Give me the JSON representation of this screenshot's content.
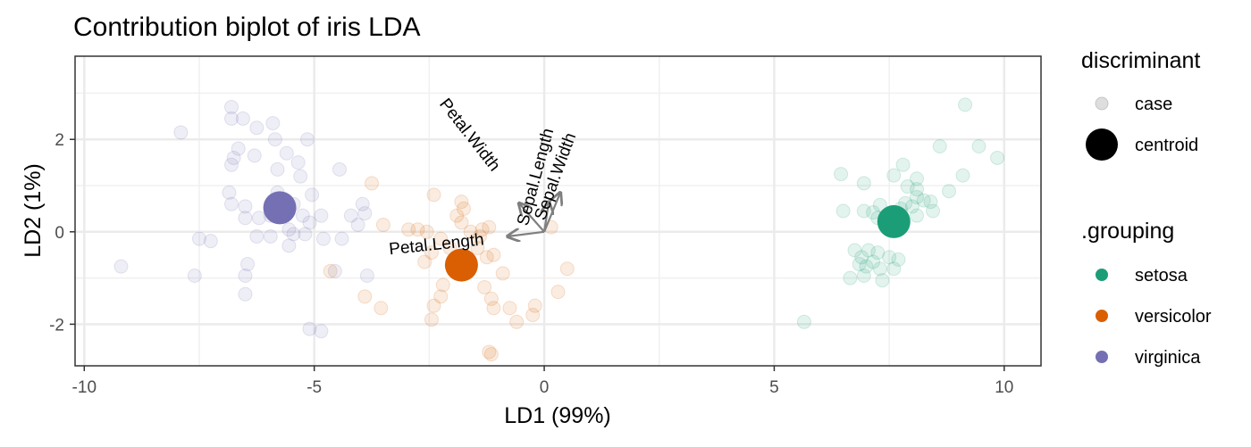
{
  "chart_data": {
    "type": "scatter",
    "title": "Contribution biplot of iris LDA",
    "xlabel": "LD1 (99%)",
    "ylabel": "LD2 (1%)",
    "xlim": [
      -10.2,
      10.8
    ],
    "ylim": [
      -2.9,
      3.8
    ],
    "x_ticks": [
      -10,
      -5,
      0,
      5,
      10
    ],
    "y_ticks": [
      -2,
      0,
      2
    ],
    "x_tick_labels": [
      "-10",
      "-5",
      "0",
      "5",
      "10"
    ],
    "y_tick_labels": [
      "-2",
      "0",
      "2"
    ],
    "grid": true,
    "legend": {
      "position": "right",
      "discriminant_title": "discriminant",
      "discriminant_items": [
        {
          "label": "case",
          "color": "#bbbbbb"
        },
        {
          "label": "centroid",
          "color": "#000000"
        }
      ],
      "grouping_title": ".grouping",
      "grouping_items": [
        {
          "label": "setosa",
          "color": "#1b9e77"
        },
        {
          "label": "versicolor",
          "color": "#d95f02"
        },
        {
          "label": "virginica",
          "color": "#7570b3"
        }
      ]
    },
    "groups": [
      {
        "name": "setosa",
        "color": "#1b9e77",
        "centroid": [
          7.6,
          0.22
        ],
        "cases": [
          [
            9.15,
            2.75
          ],
          [
            8.6,
            1.85
          ],
          [
            9.45,
            1.85
          ],
          [
            9.85,
            1.6
          ],
          [
            9.1,
            1.22
          ],
          [
            7.8,
            1.45
          ],
          [
            7.6,
            1.22
          ],
          [
            8.1,
            1.15
          ],
          [
            7.9,
            0.98
          ],
          [
            8.1,
            0.92
          ],
          [
            8.8,
            0.88
          ],
          [
            6.45,
            1.25
          ],
          [
            6.95,
            1.05
          ],
          [
            8.25,
            0.68
          ],
          [
            8.4,
            0.65
          ],
          [
            8.1,
            0.75
          ],
          [
            7.85,
            0.62
          ],
          [
            7.75,
            0.5
          ],
          [
            8.0,
            0.55
          ],
          [
            8.45,
            0.45
          ],
          [
            7.3,
            0.58
          ],
          [
            7.15,
            0.42
          ],
          [
            6.95,
            0.45
          ],
          [
            6.5,
            0.45
          ],
          [
            7.25,
            0.3
          ],
          [
            7.5,
            0.3
          ],
          [
            8.1,
            0.35
          ],
          [
            6.75,
            -0.4
          ],
          [
            7.05,
            -0.4
          ],
          [
            6.9,
            -0.55
          ],
          [
            7.25,
            -0.45
          ],
          [
            7.5,
            -0.55
          ],
          [
            6.85,
            -0.7
          ],
          [
            7.0,
            -0.75
          ],
          [
            7.15,
            -0.65
          ],
          [
            7.3,
            -0.8
          ],
          [
            7.6,
            -0.8
          ],
          [
            6.95,
            -0.95
          ],
          [
            6.65,
            -1.0
          ],
          [
            7.35,
            -1.05
          ],
          [
            5.65,
            -1.95
          ],
          [
            7.7,
            -0.6
          ]
        ]
      },
      {
        "name": "versicolor",
        "color": "#d95f02",
        "centroid": [
          -1.8,
          -0.72
        ],
        "cases": [
          [
            -3.75,
            1.05
          ],
          [
            -2.4,
            0.8
          ],
          [
            -1.8,
            0.65
          ],
          [
            -1.8,
            0.2
          ],
          [
            -1.9,
            0.35
          ],
          [
            -1.75,
            0.5
          ],
          [
            -1.6,
            0.0
          ],
          [
            -1.35,
            0.05
          ],
          [
            -1.2,
            0.1
          ],
          [
            -2.95,
            0.05
          ],
          [
            -2.75,
            0.05
          ],
          [
            -2.55,
            0.0
          ],
          [
            -3.5,
            0.15
          ],
          [
            -2.25,
            -0.15
          ],
          [
            -2.45,
            -0.45
          ],
          [
            -2.6,
            -0.65
          ],
          [
            -2.05,
            -0.35
          ],
          [
            -1.45,
            -0.35
          ],
          [
            -1.25,
            -0.55
          ],
          [
            -1.1,
            -0.5
          ],
          [
            -0.9,
            -0.9
          ],
          [
            -1.3,
            -1.2
          ],
          [
            -2.2,
            -1.15
          ],
          [
            -2.25,
            -1.4
          ],
          [
            -2.4,
            -1.6
          ],
          [
            -2.45,
            -1.9
          ],
          [
            -1.15,
            -1.45
          ],
          [
            -1.1,
            -1.65
          ],
          [
            -0.75,
            -1.65
          ],
          [
            -0.6,
            -1.95
          ],
          [
            -0.25,
            -1.8
          ],
          [
            -0.2,
            -1.6
          ],
          [
            -4.65,
            -0.85
          ],
          [
            -3.9,
            -1.4
          ],
          [
            -3.55,
            -1.65
          ],
          [
            -1.2,
            -2.6
          ],
          [
            -1.15,
            -2.65
          ],
          [
            0.3,
            -1.3
          ],
          [
            0.5,
            -0.8
          ],
          [
            0.15,
            0.1
          ],
          [
            -1.4,
            -0.1
          ]
        ]
      },
      {
        "name": "virginica",
        "color": "#7570b3",
        "centroid": [
          -5.75,
          0.52
        ],
        "cases": [
          [
            -6.8,
            2.7
          ],
          [
            -6.8,
            2.45
          ],
          [
            -6.55,
            2.45
          ],
          [
            -5.9,
            2.35
          ],
          [
            -7.9,
            2.15
          ],
          [
            -6.25,
            2.25
          ],
          [
            -5.85,
            2.0
          ],
          [
            -5.15,
            2.0
          ],
          [
            -6.65,
            1.8
          ],
          [
            -6.75,
            1.6
          ],
          [
            -6.8,
            1.45
          ],
          [
            -6.3,
            1.65
          ],
          [
            -5.6,
            1.7
          ],
          [
            -5.35,
            1.5
          ],
          [
            -5.8,
            1.35
          ],
          [
            -5.3,
            1.2
          ],
          [
            -4.45,
            1.35
          ],
          [
            -6.85,
            0.85
          ],
          [
            -6.8,
            0.6
          ],
          [
            -6.5,
            0.55
          ],
          [
            -5.8,
            0.85
          ],
          [
            -5.45,
            0.6
          ],
          [
            -5.05,
            0.8
          ],
          [
            -5.25,
            0.35
          ],
          [
            -5.95,
            0.35
          ],
          [
            -6.2,
            0.3
          ],
          [
            -6.5,
            0.3
          ],
          [
            -3.95,
            0.6
          ],
          [
            -3.9,
            0.4
          ],
          [
            -4.2,
            0.35
          ],
          [
            -4.85,
            0.35
          ],
          [
            -5.1,
            0.2
          ],
          [
            -4.05,
            0.15
          ],
          [
            -5.55,
            0.05
          ],
          [
            -5.45,
            -0.05
          ],
          [
            -5.95,
            -0.1
          ],
          [
            -6.25,
            -0.1
          ],
          [
            -7.5,
            -0.15
          ],
          [
            -7.25,
            -0.2
          ],
          [
            -5.2,
            -0.05
          ],
          [
            -4.8,
            -0.15
          ],
          [
            -5.55,
            -0.3
          ],
          [
            -4.4,
            -0.15
          ],
          [
            -9.2,
            -0.75
          ],
          [
            -7.6,
            -0.95
          ],
          [
            -6.45,
            -0.7
          ],
          [
            -6.5,
            -0.95
          ],
          [
            -6.5,
            -1.35
          ],
          [
            -4.55,
            -0.85
          ],
          [
            -3.85,
            -0.95
          ],
          [
            -5.1,
            -2.1
          ],
          [
            -4.85,
            -2.15
          ]
        ]
      }
    ],
    "arrows": [
      {
        "label": "Petal.Length",
        "x": -0.8,
        "y": -0.1
      },
      {
        "label": "Petal.Width",
        "x": -0.55,
        "y": 0.62
      },
      {
        "label": "Sepal.Length",
        "x": 0.1,
        "y": 0.65
      },
      {
        "label": "Sepal.Width",
        "x": 0.35,
        "y": 0.85
      }
    ]
  }
}
